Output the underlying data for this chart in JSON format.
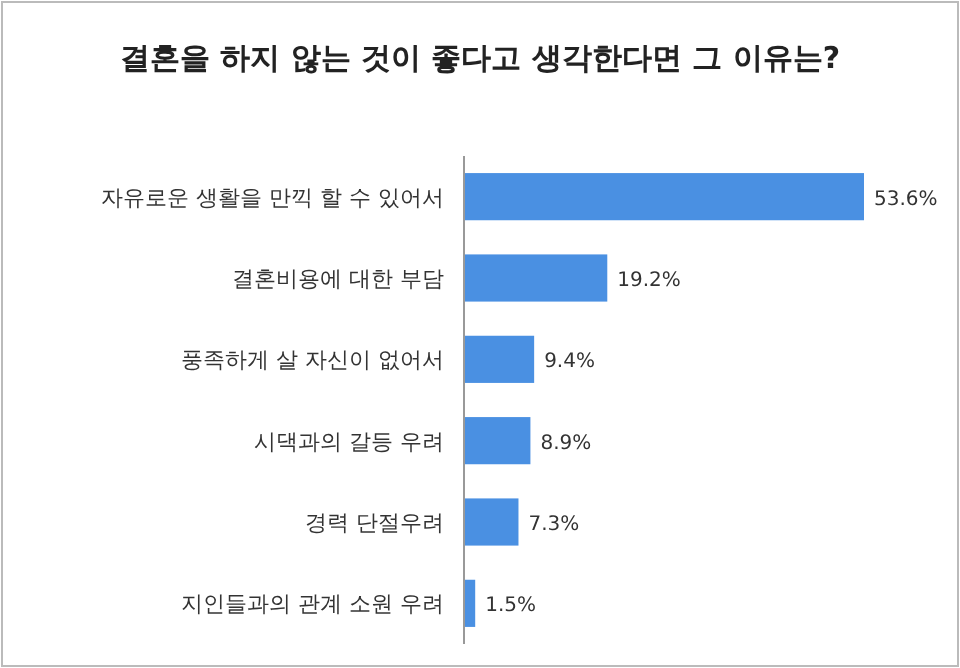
{
  "chart_data": {
    "type": "bar",
    "orientation": "horizontal",
    "title": "결혼을 하지 않는 것이 좋다고 생각한다면 그 이유는?",
    "categories": [
      "자유로운 생활을 만끽 할 수 있어서",
      "결혼비용에 대한 부담",
      "풍족하게 살 자신이 없어서",
      "시댁과의 갈등 우려",
      "경력 단절우려",
      "지인들과의 관계 소원 우려"
    ],
    "values": [
      53.6,
      19.2,
      9.4,
      8.9,
      7.3,
      1.5
    ],
    "value_labels": [
      "53.6%",
      "19.2%",
      "9.4%",
      "8.9%",
      "7.3%",
      "1.5%"
    ],
    "color": "#4a90e2"
  }
}
